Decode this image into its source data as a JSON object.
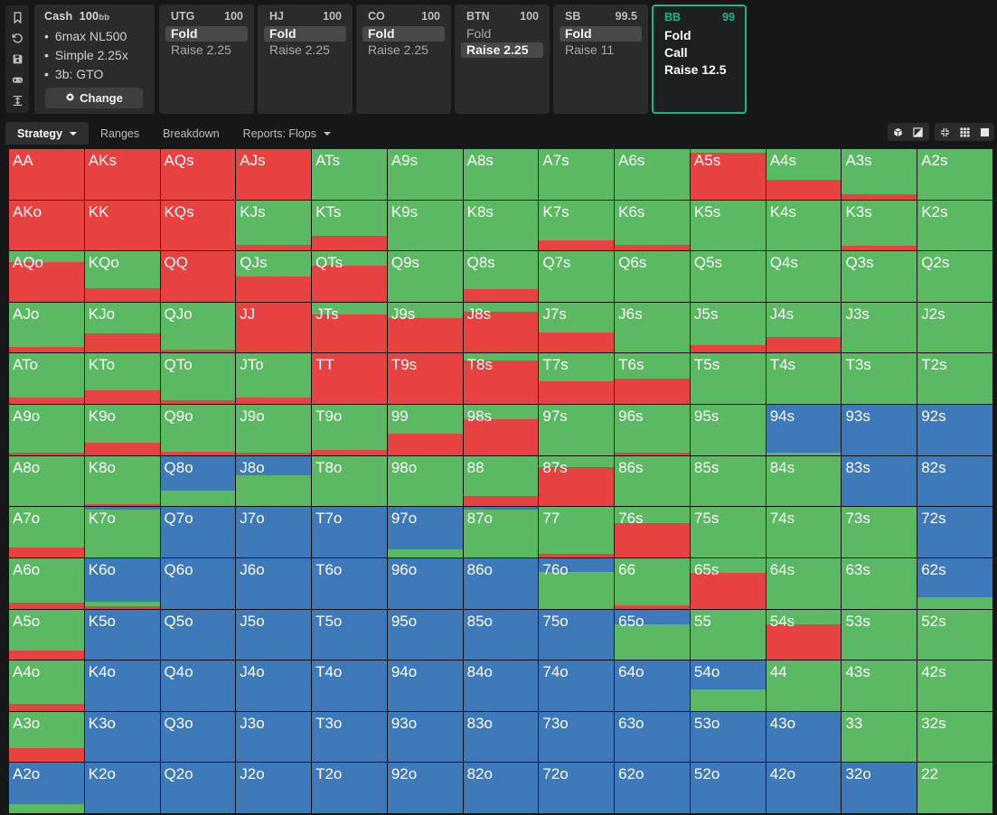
{
  "settings": {
    "game_type": "Cash",
    "stack": "100",
    "stack_unit": "bb",
    "items": [
      "6max NL500",
      "Simple 2.25x",
      "3b: GTO"
    ],
    "change_label": "Change"
  },
  "positions": [
    {
      "name": "UTG",
      "stack": "100",
      "actions": [
        "Fold",
        "Raise 2.25"
      ],
      "selected": 0
    },
    {
      "name": "HJ",
      "stack": "100",
      "actions": [
        "Fold",
        "Raise 2.25"
      ],
      "selected": 0
    },
    {
      "name": "CO",
      "stack": "100",
      "actions": [
        "Fold",
        "Raise 2.25"
      ],
      "selected": 0
    },
    {
      "name": "BTN",
      "stack": "100",
      "actions": [
        "Fold",
        "Raise 2.25"
      ],
      "selected": 1
    },
    {
      "name": "SB",
      "stack": "99.5",
      "actions": [
        "Fold",
        "Raise 11"
      ],
      "selected": 0
    },
    {
      "name": "BB",
      "stack": "99",
      "actions": [
        "Fold",
        "Call",
        "Raise 12.5"
      ],
      "selected": -1,
      "active": true
    }
  ],
  "tabs": [
    {
      "label": "Strategy",
      "active": true,
      "dropdown": true
    },
    {
      "label": "Ranges"
    },
    {
      "label": "Breakdown"
    },
    {
      "label": "Reports: Flops",
      "dropdown": true
    }
  ],
  "icons": {
    "rail": [
      "bookmark-icon",
      "history-icon",
      "save-icon",
      "gamepad-icon",
      "collapse-icon"
    ],
    "view_toggle": [
      "cube-icon",
      "contrast-icon"
    ],
    "grid_toggle": [
      "compact-icon",
      "grid-icon",
      "single-square-icon"
    ]
  },
  "colors": {
    "raise": "#e84141",
    "call": "#5ab962",
    "fold": "#3e79b9",
    "accent": "#20b38a"
  },
  "grid": {
    "legend_order": [
      "fold",
      "call",
      "raise"
    ],
    "rows": [
      [
        {
          "h": "AA",
          "r": 1
        },
        {
          "h": "AKs",
          "r": 1
        },
        {
          "h": "AQs",
          "r": 1
        },
        {
          "h": "AJs",
          "r": 1
        },
        {
          "h": "ATs",
          "r": 0
        },
        {
          "h": "A9s",
          "r": 0
        },
        {
          "h": "A8s",
          "r": 0
        },
        {
          "h": "A7s",
          "r": 0
        },
        {
          "h": "A6s",
          "r": 0
        },
        {
          "h": "A5s",
          "r": 0.93
        },
        {
          "h": "A4s",
          "r": 0.39
        },
        {
          "h": "A3s",
          "r": 0.1
        },
        {
          "h": "A2s",
          "r": 0
        }
      ],
      [
        {
          "h": "AKo",
          "r": 1
        },
        {
          "h": "KK",
          "r": 1
        },
        {
          "h": "KQs",
          "r": 1
        },
        {
          "h": "KJs",
          "r": 0.11
        },
        {
          "h": "KTs",
          "r": 0.29
        },
        {
          "h": "K9s",
          "r": 0
        },
        {
          "h": "K8s",
          "r": 0
        },
        {
          "h": "K7s",
          "r": 0.2
        },
        {
          "h": "K6s",
          "r": 0.11
        },
        {
          "h": "K5s",
          "r": 0
        },
        {
          "h": "K4s",
          "r": 0
        },
        {
          "h": "K3s",
          "r": 0.09
        },
        {
          "h": "K2s",
          "r": 0
        }
      ],
      [
        {
          "h": "AQo",
          "r": 0.79
        },
        {
          "h": "KQo",
          "r": 0.27
        },
        {
          "h": "QQ",
          "r": 1
        },
        {
          "h": "QJs",
          "r": 0.5
        },
        {
          "h": "QTs",
          "r": 0.71
        },
        {
          "h": "Q9s",
          "r": 0
        },
        {
          "h": "Q8s",
          "r": 0.25
        },
        {
          "h": "Q7s",
          "r": 0
        },
        {
          "h": "Q6s",
          "r": 0
        },
        {
          "h": "Q5s",
          "r": 0
        },
        {
          "h": "Q4s",
          "r": 0
        },
        {
          "h": "Q3s",
          "r": 0
        },
        {
          "h": "Q2s",
          "r": 0
        }
      ],
      [
        {
          "h": "AJo",
          "r": 0.11
        },
        {
          "h": "KJo",
          "r": 0.38
        },
        {
          "h": "QJo",
          "r": 0.07
        },
        {
          "h": "JJ",
          "r": 1
        },
        {
          "h": "JTs",
          "r": 0.77
        },
        {
          "h": "J9s",
          "r": 0.7
        },
        {
          "h": "J8s",
          "r": 0.82
        },
        {
          "h": "J7s",
          "r": 0.4
        },
        {
          "h": "J6s",
          "r": 0
        },
        {
          "h": "J5s",
          "r": 0.16
        },
        {
          "h": "J4s",
          "r": 0.32
        },
        {
          "h": "J3s",
          "r": 0
        },
        {
          "h": "J2s",
          "r": 0
        }
      ],
      [
        {
          "h": "ATo",
          "r": 0.13
        },
        {
          "h": "KTo",
          "r": 0.27
        },
        {
          "h": "QTo",
          "r": 0.07
        },
        {
          "h": "JTo",
          "r": 0.13
        },
        {
          "h": "TT",
          "r": 1
        },
        {
          "h": "T9s",
          "r": 1
        },
        {
          "h": "T8s",
          "r": 0.86
        },
        {
          "h": "T7s",
          "r": 0.45
        },
        {
          "h": "T6s",
          "r": 0.5
        },
        {
          "h": "T5s",
          "r": 0
        },
        {
          "h": "T4s",
          "r": 0
        },
        {
          "h": "T3s",
          "r": 0
        },
        {
          "h": "T2s",
          "r": 0
        }
      ],
      [
        {
          "h": "A9o",
          "r": 0.04
        },
        {
          "h": "K9o",
          "r": 0.25
        },
        {
          "h": "Q9o",
          "r": 0.07
        },
        {
          "h": "J9o",
          "r": 0.05
        },
        {
          "h": "T9o",
          "r": 0.1
        },
        {
          "h": "99",
          "r": 0.43
        },
        {
          "h": "98s",
          "r": 0.71
        },
        {
          "h": "97s",
          "r": 0
        },
        {
          "h": "96s",
          "r": 0.04
        },
        {
          "h": "95s",
          "r": 0
        },
        {
          "h": "94s",
          "f": 0.95
        },
        {
          "h": "93s",
          "f": 1
        },
        {
          "h": "92s",
          "f": 1
        }
      ],
      [
        {
          "h": "A8o",
          "r": 0
        },
        {
          "h": "K8o",
          "r": 0.05
        },
        {
          "h": "Q8o",
          "f": 0.68
        },
        {
          "h": "J8o",
          "f": 0.39
        },
        {
          "h": "T8o",
          "r": 0
        },
        {
          "h": "98o",
          "r": 0
        },
        {
          "h": "88",
          "r": 0.21
        },
        {
          "h": "87s",
          "r": 0.77
        },
        {
          "h": "86s",
          "r": 0
        },
        {
          "h": "85s",
          "r": 0
        },
        {
          "h": "84s",
          "r": 0
        },
        {
          "h": "83s",
          "f": 1
        },
        {
          "h": "82s",
          "f": 1
        }
      ],
      [
        {
          "h": "A7o",
          "r": 0.2
        },
        {
          "h": "K7o",
          "f": 0.05
        },
        {
          "h": "Q7o",
          "f": 1
        },
        {
          "h": "J7o",
          "f": 1
        },
        {
          "h": "T7o",
          "f": 1
        },
        {
          "h": "97o",
          "f": 0.84
        },
        {
          "h": "87o",
          "f": 0.04
        },
        {
          "h": "77",
          "r": 0.07
        },
        {
          "h": "76s",
          "r": 0.68
        },
        {
          "h": "75s",
          "r": 0
        },
        {
          "h": "74s",
          "r": 0
        },
        {
          "h": "73s",
          "r": 0
        },
        {
          "h": "72s",
          "f": 1
        }
      ],
      [
        {
          "h": "A6o",
          "r": 0.11
        },
        {
          "h": "K6o",
          "f": 0.86,
          "r": 0.04
        },
        {
          "h": "Q6o",
          "f": 1
        },
        {
          "h": "J6o",
          "f": 1
        },
        {
          "h": "T6o",
          "f": 1
        },
        {
          "h": "96o",
          "f": 1
        },
        {
          "h": "86o",
          "f": 1
        },
        {
          "h": "76o",
          "f": 0.27
        },
        {
          "h": "66",
          "r": 0.07
        },
        {
          "h": "65s",
          "r": 0.71
        },
        {
          "h": "64s",
          "r": 0
        },
        {
          "h": "63s",
          "r": 0
        },
        {
          "h": "62s",
          "f": 0.77
        }
      ],
      [
        {
          "h": "A5o",
          "r": 0.18
        },
        {
          "h": "K5o",
          "f": 1
        },
        {
          "h": "Q5o",
          "f": 1
        },
        {
          "h": "J5o",
          "f": 1
        },
        {
          "h": "T5o",
          "f": 1
        },
        {
          "h": "95o",
          "f": 1
        },
        {
          "h": "85o",
          "f": 1
        },
        {
          "h": "75o",
          "f": 1
        },
        {
          "h": "65o",
          "f": 0.29
        },
        {
          "h": "55",
          "r": 0
        },
        {
          "h": "54s",
          "r": 0.7
        },
        {
          "h": "53s",
          "r": 0
        },
        {
          "h": "52s",
          "r": 0
        }
      ],
      [
        {
          "h": "A4o",
          "r": 0.14
        },
        {
          "h": "K4o",
          "f": 1
        },
        {
          "h": "Q4o",
          "f": 1
        },
        {
          "h": "J4o",
          "f": 1
        },
        {
          "h": "T4o",
          "f": 1
        },
        {
          "h": "94o",
          "f": 1
        },
        {
          "h": "84o",
          "f": 1
        },
        {
          "h": "74o",
          "f": 1
        },
        {
          "h": "64o",
          "f": 1
        },
        {
          "h": "54o",
          "f": 0.57
        },
        {
          "h": "44",
          "r": 0
        },
        {
          "h": "43s",
          "r": 0
        },
        {
          "h": "42s",
          "r": 0
        }
      ],
      [
        {
          "h": "A3o",
          "r": 0.27
        },
        {
          "h": "K3o",
          "f": 1
        },
        {
          "h": "Q3o",
          "f": 1
        },
        {
          "h": "J3o",
          "f": 1
        },
        {
          "h": "T3o",
          "f": 1
        },
        {
          "h": "93o",
          "f": 1
        },
        {
          "h": "83o",
          "f": 1
        },
        {
          "h": "73o",
          "f": 1
        },
        {
          "h": "63o",
          "f": 1
        },
        {
          "h": "53o",
          "f": 1
        },
        {
          "h": "43o",
          "f": 1
        },
        {
          "h": "33",
          "r": 0
        },
        {
          "h": "32s",
          "r": 0
        }
      ],
      [
        {
          "h": "A2o",
          "f": 0.82
        },
        {
          "h": "K2o",
          "f": 1
        },
        {
          "h": "Q2o",
          "f": 1
        },
        {
          "h": "J2o",
          "f": 1
        },
        {
          "h": "T2o",
          "f": 1
        },
        {
          "h": "92o",
          "f": 1
        },
        {
          "h": "82o",
          "f": 1
        },
        {
          "h": "72o",
          "f": 1
        },
        {
          "h": "62o",
          "f": 1
        },
        {
          "h": "52o",
          "f": 1
        },
        {
          "h": "42o",
          "f": 1
        },
        {
          "h": "32o",
          "f": 1
        },
        {
          "h": "22",
          "r": 0
        }
      ]
    ]
  }
}
